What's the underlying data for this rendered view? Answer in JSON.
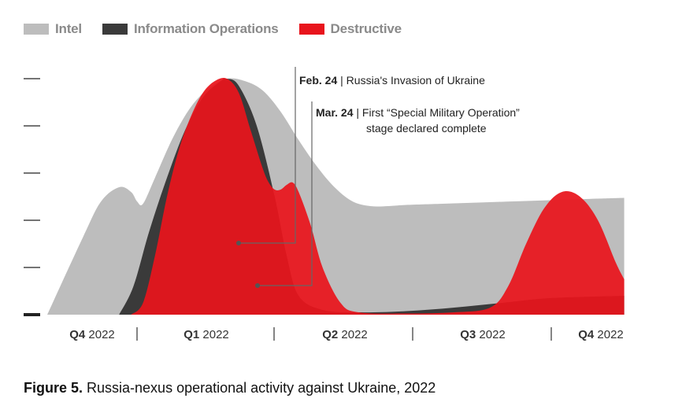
{
  "legend": [
    {
      "label": "Intel",
      "color": "#bdbdbd"
    },
    {
      "label": "Information Operations",
      "color": "#3a3a3a"
    },
    {
      "label": "Destructive",
      "color": "#e8141c"
    }
  ],
  "annotations": [
    {
      "bold": "Feb. 24",
      "text": " | Russia's Invasion of Ukraine",
      "line2": ""
    },
    {
      "bold": "Mar. 24",
      "text": " | First “Special Military Operation”",
      "line2": "stage declared complete"
    }
  ],
  "caption": {
    "bold": "Figure 5.",
    "text": " Russia-nexus operational activity against Ukraine, 2022"
  },
  "chart_data": {
    "type": "area",
    "x_ticks": [
      {
        "q": "Q4",
        "year": "2022"
      },
      {
        "q": "Q1",
        "year": "2022"
      },
      {
        "q": "Q2",
        "year": "2022"
      },
      {
        "q": "Q3",
        "year": "2022"
      },
      {
        "q": "Q4",
        "year": "2022"
      }
    ],
    "x_range": [
      0,
      5
    ],
    "y_range": [
      0,
      100
    ],
    "y_tick_values": [
      0,
      20,
      40,
      60,
      80,
      100
    ],
    "series": [
      {
        "name": "Intel",
        "color": "#bdbdbd",
        "x": [
          0.0,
          0.3,
          0.45,
          0.6,
          0.7,
          0.75,
          0.8,
          0.9,
          1.05,
          1.2,
          1.35,
          1.5,
          1.65,
          1.8,
          1.95,
          2.1,
          2.25,
          2.4,
          2.55,
          2.7,
          2.85,
          3.0,
          3.3,
          3.6,
          3.9,
          4.2,
          4.5,
          4.82
        ],
        "y": [
          0,
          33,
          48,
          54,
          52,
          48,
          47,
          58,
          75,
          88,
          96,
          100,
          99,
          95,
          86,
          74,
          63,
          54,
          48,
          46,
          46,
          46.5,
          47,
          47.5,
          48,
          48.5,
          49,
          49.5
        ]
      },
      {
        "name": "Information Operations",
        "color": "#3a3a3a",
        "x": [
          0.6,
          0.72,
          0.85,
          1.0,
          1.15,
          1.3,
          1.45,
          1.5,
          1.6,
          1.75,
          1.9,
          2.0,
          2.1,
          2.3,
          2.6,
          3.0,
          3.4,
          3.8,
          4.2,
          4.82
        ],
        "y": [
          0,
          12,
          35,
          58,
          78,
          92,
          99,
          100,
          97,
          80,
          50,
          25,
          8,
          2,
          1,
          1.5,
          3,
          5,
          7,
          8
        ]
      },
      {
        "name": "Destructive",
        "color": "#e8141c",
        "x": [
          0.7,
          0.8,
          0.9,
          1.0,
          1.1,
          1.2,
          1.3,
          1.4,
          1.5,
          1.6,
          1.7,
          1.8,
          1.85,
          1.9,
          1.95,
          2.0,
          2.05,
          2.1,
          2.2,
          2.3,
          2.45,
          2.6,
          3.0,
          3.4,
          3.7,
          3.85,
          4.0,
          4.15,
          4.3,
          4.45,
          4.6,
          4.75,
          4.82
        ],
        "y": [
          0,
          5,
          25,
          50,
          70,
          84,
          94,
          99,
          100,
          94,
          78,
          62,
          56,
          53,
          53,
          55,
          56,
          52,
          38,
          20,
          5,
          1,
          0.5,
          1,
          3,
          12,
          30,
          45,
          52,
          50,
          40,
          22,
          15
        ]
      }
    ]
  }
}
